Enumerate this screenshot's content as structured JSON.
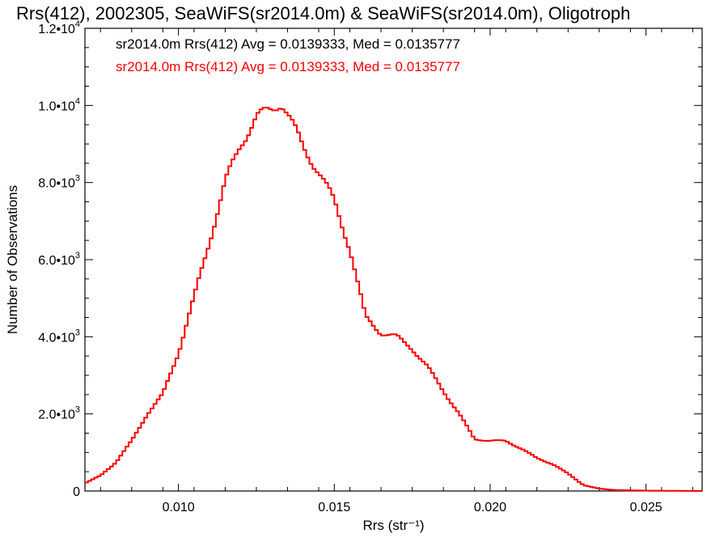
{
  "chart_data": {
    "type": "line",
    "style": "step-histogram",
    "title": "Rrs(412), 2002305, SeaWiFS(sr2014.0m) & SeaWiFS(sr2014.0m), Oligotroph",
    "xlabel": "Rrs (str⁻¹)",
    "ylabel": "Number of Observations",
    "xlim": [
      0.007,
      0.0268
    ],
    "ylim": [
      0,
      12000
    ],
    "x_ticks": [
      0.01,
      0.015,
      0.02,
      0.025
    ],
    "x_tick_labels": [
      "0.010",
      "0.015",
      "0.020",
      "0.025"
    ],
    "y_ticks": [
      0,
      2000,
      4000,
      6000,
      8000,
      10000,
      12000
    ],
    "y_tick_labels": [
      {
        "mantissa": "0",
        "exp": ""
      },
      {
        "mantissa": "2.0•10",
        "exp": "3"
      },
      {
        "mantissa": "4.0•10",
        "exp": "3"
      },
      {
        "mantissa": "6.0•10",
        "exp": "3"
      },
      {
        "mantissa": "8.0•10",
        "exp": "3"
      },
      {
        "mantissa": "1.0•10",
        "exp": "4"
      },
      {
        "mantissa": "1.2•10",
        "exp": "4"
      }
    ],
    "legend": [
      {
        "text": "sr2014.0m Rrs(412) Avg = 0.0139333, Med = 0.0135777",
        "color": "#000000"
      },
      {
        "text": "sr2014.0m Rrs(412) Avg = 0.0139333, Med = 0.0135777",
        "color": "#ff0000"
      }
    ],
    "legend_placement": "top-left",
    "grid": false,
    "series": [
      {
        "color": "#ff0000",
        "points": [
          [
            0.007,
            200
          ],
          [
            0.0075,
            400
          ],
          [
            0.008,
            750
          ],
          [
            0.0085,
            1300
          ],
          [
            0.009,
            2000
          ],
          [
            0.0095,
            2500
          ],
          [
            0.01,
            3600
          ],
          [
            0.0105,
            5000
          ],
          [
            0.011,
            6500
          ],
          [
            0.0115,
            8000
          ],
          [
            0.012,
            9000
          ],
          [
            0.0125,
            9700
          ],
          [
            0.013,
            9900
          ],
          [
            0.0133,
            10100
          ],
          [
            0.0135,
            9800
          ],
          [
            0.014,
            8900
          ],
          [
            0.0145,
            8300
          ],
          [
            0.015,
            7500
          ],
          [
            0.0155,
            6300
          ],
          [
            0.016,
            4500
          ],
          [
            0.0165,
            4100
          ],
          [
            0.017,
            4000
          ],
          [
            0.0175,
            3700
          ],
          [
            0.018,
            3200
          ],
          [
            0.0185,
            2600
          ],
          [
            0.019,
            2000
          ],
          [
            0.0195,
            1350
          ],
          [
            0.02,
            1300
          ],
          [
            0.0205,
            1300
          ],
          [
            0.021,
            1100
          ],
          [
            0.0215,
            850
          ],
          [
            0.022,
            700
          ],
          [
            0.0225,
            450
          ],
          [
            0.023,
            150
          ],
          [
            0.0235,
            60
          ],
          [
            0.024,
            25
          ],
          [
            0.025,
            10
          ],
          [
            0.0268,
            0
          ]
        ]
      }
    ]
  }
}
